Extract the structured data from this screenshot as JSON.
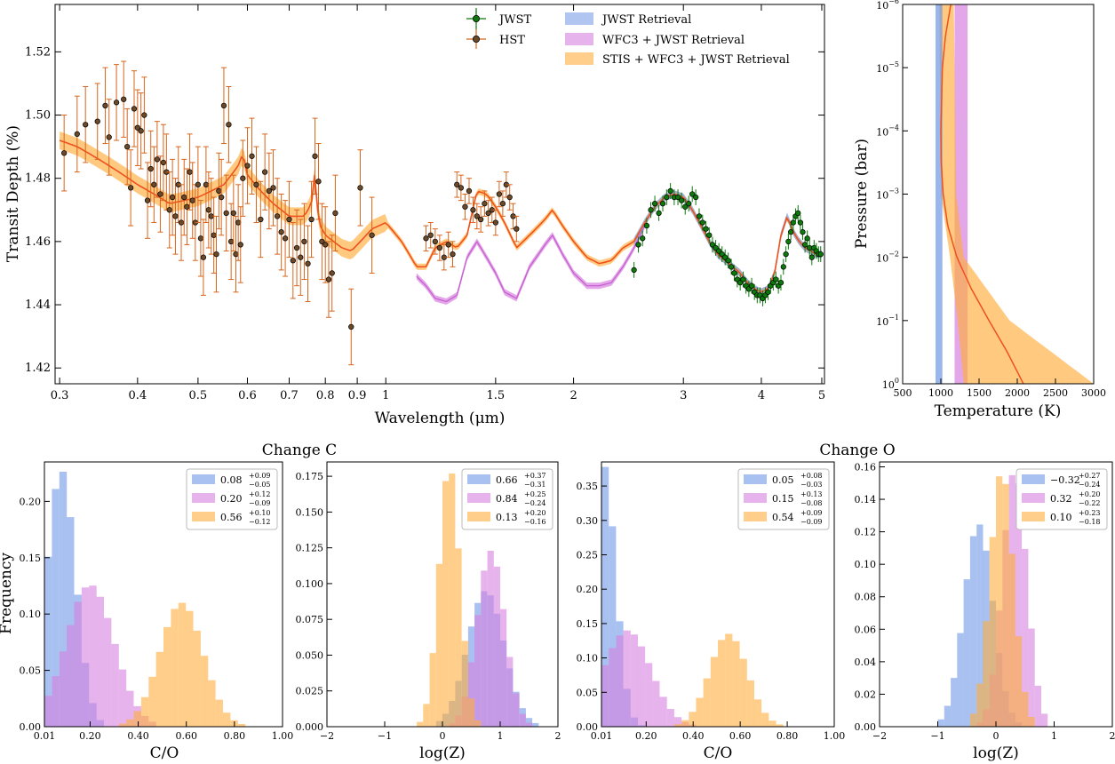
{
  "colors": {
    "jwst": "#0b7a0b",
    "hst": "#d8641a",
    "hst_face": "#6b4a2a",
    "jwst_retrieval": "#6f98e6",
    "wfc3_jwst_retrieval": "#d780e0",
    "stis_wfc3_jwst_retrieval": "#ffae3c",
    "model_line": "#f0501e"
  },
  "chart_data": [
    {
      "id": "spectrum",
      "type": "scatter",
      "xlabel": "Wavelength (μm)",
      "ylabel": "Transit Depth (%)",
      "xscale": "log",
      "xlim": [
        0.295,
        5.05
      ],
      "ylim": [
        1.415,
        1.535
      ],
      "xticks": [
        0.3,
        0.4,
        0.5,
        0.6,
        0.7,
        0.8,
        0.9,
        1,
        1.5,
        2,
        3,
        4,
        5
      ],
      "xtick_labels": [
        "0.3",
        "0.4",
        "0.5",
        "0.6",
        "0.7",
        "0.8",
        "0.9",
        "1",
        "1.5",
        "2",
        "3",
        "4",
        "5"
      ],
      "yticks": [
        1.42,
        1.44,
        1.46,
        1.48,
        1.5,
        1.52
      ],
      "ytick_labels": [
        "1.42",
        "1.44",
        "1.46",
        "1.48",
        "1.50",
        "1.52"
      ],
      "legend": [
        "JWST",
        "HST",
        "JWST Retrieval",
        "WFC3 + JWST Retrieval",
        "STIS + WFC3 + JWST Retrieval"
      ],
      "hst_x": [
        0.305,
        0.32,
        0.33,
        0.345,
        0.355,
        0.36,
        0.37,
        0.38,
        0.385,
        0.39,
        0.395,
        0.4,
        0.405,
        0.41,
        0.415,
        0.42,
        0.425,
        0.43,
        0.435,
        0.44,
        0.445,
        0.45,
        0.455,
        0.46,
        0.465,
        0.47,
        0.475,
        0.48,
        0.485,
        0.49,
        0.495,
        0.5,
        0.505,
        0.51,
        0.515,
        0.52,
        0.525,
        0.53,
        0.535,
        0.54,
        0.545,
        0.55,
        0.555,
        0.56,
        0.565,
        0.57,
        0.575,
        0.58,
        0.585,
        0.59,
        0.6,
        0.61,
        0.62,
        0.63,
        0.64,
        0.65,
        0.66,
        0.67,
        0.68,
        0.69,
        0.7,
        0.71,
        0.72,
        0.73,
        0.74,
        0.75,
        0.76,
        0.77,
        0.78,
        0.79,
        0.8,
        0.81,
        0.82,
        0.83,
        0.88,
        0.91,
        0.95,
        1.16,
        1.18,
        1.2,
        1.22,
        1.24,
        1.26,
        1.28,
        1.3,
        1.32,
        1.34,
        1.36,
        1.38,
        1.4,
        1.42,
        1.44,
        1.46,
        1.48,
        1.5,
        1.52,
        1.54,
        1.56,
        1.58,
        1.6,
        1.62
      ],
      "hst_y": [
        1.488,
        1.494,
        1.497,
        1.498,
        1.503,
        1.493,
        1.504,
        1.505,
        1.49,
        1.477,
        1.502,
        1.496,
        1.495,
        1.5,
        1.473,
        1.483,
        1.478,
        1.486,
        1.475,
        1.485,
        1.482,
        1.47,
        1.474,
        1.468,
        1.478,
        1.466,
        1.474,
        1.471,
        1.482,
        1.473,
        1.466,
        1.478,
        1.461,
        1.455,
        1.478,
        1.47,
        1.468,
        1.462,
        1.456,
        1.476,
        1.474,
        1.503,
        1.469,
        1.497,
        1.46,
        1.469,
        1.456,
        1.466,
        1.459,
        1.48,
        1.484,
        1.487,
        1.478,
        1.467,
        1.482,
        1.476,
        1.477,
        1.468,
        1.463,
        1.461,
        1.467,
        1.454,
        1.458,
        1.455,
        1.46,
        1.453,
        1.467,
        1.487,
        1.479,
        1.46,
        1.459,
        1.448,
        1.45,
        1.469,
        1.433,
        1.477,
        1.462,
        1.461,
        1.462,
        1.46,
        1.458,
        1.455,
        1.459,
        1.456,
        1.478,
        1.477,
        1.471,
        1.476,
        1.47,
        1.468,
        1.467,
        1.472,
        1.469,
        1.47,
        1.466,
        1.475,
        1.472,
        1.478,
        1.474,
        1.468,
        1.464
      ],
      "jwst_x": [
        2.5,
        2.54,
        2.58,
        2.62,
        2.66,
        2.7,
        2.74,
        2.78,
        2.82,
        2.86,
        2.9,
        2.94,
        2.98,
        3.02,
        3.06,
        3.1,
        3.14,
        3.18,
        3.22,
        3.26,
        3.3,
        3.34,
        3.38,
        3.42,
        3.46,
        3.5,
        3.54,
        3.58,
        3.62,
        3.66,
        3.7,
        3.74,
        3.78,
        3.82,
        3.86,
        3.9,
        3.94,
        3.98,
        4.02,
        4.06,
        4.1,
        4.14,
        4.18,
        4.22,
        4.26,
        4.3,
        4.34,
        4.38,
        4.42,
        4.46,
        4.5,
        4.54,
        4.58,
        4.62,
        4.66,
        4.7,
        4.74,
        4.78,
        4.82,
        4.86,
        4.9,
        4.94,
        4.98
      ],
      "jwst_y": [
        1.451,
        1.459,
        1.461,
        1.465,
        1.47,
        1.472,
        1.469,
        1.472,
        1.474,
        1.476,
        1.474,
        1.474,
        1.473,
        1.471,
        1.472,
        1.475,
        1.474,
        1.468,
        1.466,
        1.464,
        1.462,
        1.459,
        1.458,
        1.457,
        1.456,
        1.455,
        1.454,
        1.452,
        1.45,
        1.448,
        1.447,
        1.448,
        1.446,
        1.445,
        1.446,
        1.444,
        1.443,
        1.443,
        1.442,
        1.443,
        1.444,
        1.446,
        1.447,
        1.448,
        1.446,
        1.447,
        1.452,
        1.456,
        1.46,
        1.463,
        1.466,
        1.468,
        1.469,
        1.466,
        1.463,
        1.459,
        1.461,
        1.458,
        1.455,
        1.458,
        1.457,
        1.456,
        1.456
      ]
    },
    {
      "id": "pt_profile",
      "type": "line",
      "xlabel": "Temperature (K)",
      "ylabel": "Pressure (bar)",
      "xlim": [
        500,
        3000
      ],
      "xticks": [
        500,
        1000,
        1500,
        2000,
        2500,
        3000
      ],
      "xtick_labels": [
        "500",
        "1000",
        "1500",
        "2000",
        "2500",
        "3000"
      ],
      "yscale": "log",
      "ylim_exponent": [
        -6,
        0
      ],
      "ytick_labels": [
        {
          "base": "10",
          "exp": "−6"
        },
        {
          "base": "10",
          "exp": "−5"
        },
        {
          "base": "10",
          "exp": "−4"
        },
        {
          "base": "10",
          "exp": "−3"
        },
        {
          "base": "10",
          "exp": "−2"
        },
        {
          "base": "10",
          "exp": "−1"
        },
        {
          "base": "10",
          "exp": "0"
        }
      ],
      "bands": [
        {
          "name": "JWST Retrieval",
          "lo": 930,
          "hi": 1020
        },
        {
          "name": "WFC3 + JWST Retrieval",
          "lo": 1180,
          "hi": 1350
        },
        {
          "name": "STIS + WFC3 + JWST Retrieval",
          "lo_exp": [
            -6,
            -3,
            -2,
            -1,
            0
          ],
          "lo": [
            980,
            1000,
            1120,
            1220,
            1300
          ],
          "hi": [
            1170,
            1200,
            1300,
            1900,
            3000
          ]
        }
      ],
      "median_line": {
        "log_p": [
          -6,
          -5.5,
          -5,
          -4.5,
          -4,
          -3.5,
          -3,
          -2.5,
          -2,
          -1.5,
          -1,
          -0.5,
          0
        ],
        "t": [
          1130,
          1060,
          1020,
          1010,
          1000,
          1005,
          1030,
          1090,
          1210,
          1400,
          1630,
          1870,
          2080
        ]
      }
    },
    {
      "id": "change_c_co",
      "type": "bar",
      "group_title": "Change C",
      "xlabel": "C/O",
      "ylabel": "Frequency",
      "xlim": [
        0.01,
        1.0
      ],
      "xticks": [
        0.01,
        0.2,
        0.4,
        0.6,
        0.8,
        1.0
      ],
      "xtick_labels": [
        "0.01",
        "0.20",
        "0.40",
        "0.60",
        "0.80",
        "1.00"
      ],
      "ylim": [
        0,
        0.235
      ],
      "yticks": [
        0.0,
        0.05,
        0.1,
        0.15,
        0.2
      ],
      "ytick_labels": [
        "0.00",
        "0.05",
        "0.10",
        "0.15",
        "0.20"
      ],
      "legend": [
        {
          "median": "0.08",
          "plus": "+0.09",
          "minus": "−0.05"
        },
        {
          "median": "0.20",
          "plus": "+0.12",
          "minus": "−0.09"
        },
        {
          "median": "0.56",
          "plus": "+0.10",
          "minus": "−0.12"
        }
      ],
      "series": [
        {
          "name": "JWST Retrieval",
          "mu": 0.08,
          "sigma": 0.06,
          "peak": 0.228
        },
        {
          "name": "WFC3 + JWST Retrieval",
          "mu": 0.2,
          "sigma": 0.1,
          "peak": 0.126
        },
        {
          "name": "STIS + WFC3 + JWST Retrieval",
          "mu": 0.58,
          "sigma": 0.09,
          "peak": 0.11
        }
      ]
    },
    {
      "id": "change_c_z",
      "type": "bar",
      "xlabel": "log(Z)",
      "xlim": [
        -2,
        2
      ],
      "xticks": [
        -2,
        -1,
        0,
        1,
        2
      ],
      "xtick_labels": [
        "−2",
        "−1",
        "0",
        "1",
        "2"
      ],
      "ylim": [
        0,
        0.185
      ],
      "yticks": [
        0.0,
        0.025,
        0.05,
        0.075,
        0.1,
        0.125,
        0.15,
        0.175
      ],
      "ytick_labels": [
        "0.000",
        "0.025",
        "0.050",
        "0.075",
        "0.100",
        "0.125",
        "0.150",
        "0.175"
      ],
      "legend": [
        {
          "median": "0.66",
          "plus": "+0.37",
          "minus": "−0.31"
        },
        {
          "median": "0.84",
          "plus": "+0.25",
          "minus": "−0.24"
        },
        {
          "median": "0.13",
          "plus": "+0.20",
          "minus": "−0.16"
        }
      ],
      "series": [
        {
          "name": "JWST Retrieval",
          "mu": 0.75,
          "sigma": 0.32,
          "peak": 0.095
        },
        {
          "name": "WFC3 + JWST Retrieval",
          "mu": 0.84,
          "sigma": 0.24,
          "peak": 0.123
        },
        {
          "name": "STIS + WFC3 + JWST Retrieval",
          "mu": 0.12,
          "sigma": 0.18,
          "peak": 0.183
        }
      ]
    },
    {
      "id": "change_o_co",
      "type": "bar",
      "group_title": "Change O",
      "xlabel": "C/O",
      "xlim": [
        0.01,
        1.0
      ],
      "xticks": [
        0.01,
        0.2,
        0.4,
        0.6,
        0.8,
        1.0
      ],
      "xtick_labels": [
        "0.01",
        "0.20",
        "0.40",
        "0.60",
        "0.80",
        "1.00"
      ],
      "ylim": [
        0,
        0.385
      ],
      "yticks": [
        0.0,
        0.05,
        0.1,
        0.15,
        0.2,
        0.25,
        0.3,
        0.35
      ],
      "ytick_labels": [
        "0.00",
        "0.05",
        "0.10",
        "0.15",
        "0.20",
        "0.25",
        "0.30",
        "0.35"
      ],
      "legend": [
        {
          "median": "0.05",
          "plus": "+0.08",
          "minus": "−0.03"
        },
        {
          "median": "0.15",
          "plus": "+0.13",
          "minus": "−0.08"
        },
        {
          "median": "0.54",
          "plus": "+0.09",
          "minus": "−0.09"
        }
      ],
      "series": [
        {
          "name": "JWST Retrieval",
          "mu": 0.02,
          "sigma": 0.05,
          "peak": 0.38
        },
        {
          "name": "WFC3 + JWST Retrieval",
          "mu": 0.12,
          "sigma": 0.1,
          "peak": 0.14
        },
        {
          "name": "STIS + WFC3 + JWST Retrieval",
          "mu": 0.55,
          "sigma": 0.08,
          "peak": 0.135
        }
      ]
    },
    {
      "id": "change_o_z",
      "type": "bar",
      "xlabel": "log(Z)",
      "xlim": [
        -2,
        2
      ],
      "xticks": [
        -2,
        -1,
        0,
        1,
        2
      ],
      "xtick_labels": [
        "−2",
        "−1",
        "0",
        "1",
        "2"
      ],
      "ylim": [
        0,
        0.163
      ],
      "yticks": [
        0.0,
        0.02,
        0.04,
        0.06,
        0.08,
        0.1,
        0.12,
        0.14,
        0.16
      ],
      "ytick_labels": [
        "0.00",
        "0.02",
        "0.04",
        "0.06",
        "0.08",
        "0.10",
        "0.12",
        "0.14",
        "0.16"
      ],
      "legend": [
        {
          "median": "−0.32",
          "plus": "+0.27",
          "minus": "−0.24"
        },
        {
          "median": "0.32",
          "plus": "+0.20",
          "minus": "−0.22"
        },
        {
          "median": "0.10",
          "plus": "+0.23",
          "minus": "−0.18"
        }
      ],
      "series": [
        {
          "name": "JWST Retrieval",
          "mu": -0.3,
          "sigma": 0.25,
          "peak": 0.125
        },
        {
          "name": "WFC3 + JWST Retrieval",
          "mu": 0.32,
          "sigma": 0.21,
          "peak": 0.158
        },
        {
          "name": "STIS + WFC3 + JWST Retrieval",
          "mu": 0.1,
          "sigma": 0.2,
          "peak": 0.158
        }
      ]
    }
  ]
}
